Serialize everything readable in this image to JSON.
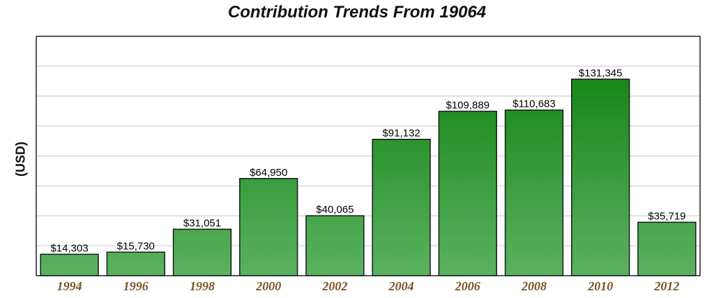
{
  "colors": {
    "bar_top": "#0a7d0a",
    "bar_bottom": "#5ab260",
    "grid": "#c8c8c8",
    "tick_label": "#7a5424",
    "plot_border": "#222222"
  },
  "chart_data": {
    "type": "bar",
    "title": "Contribution Trends From 19064",
    "xlabel": "",
    "ylabel": "(USD)",
    "categories": [
      "1994",
      "1996",
      "1998",
      "2000",
      "2002",
      "2004",
      "2006",
      "2008",
      "2010",
      "2012"
    ],
    "values": [
      14303,
      15730,
      31051,
      64950,
      40065,
      91132,
      109889,
      110683,
      131345,
      35719
    ],
    "data_labels": [
      "$14,303",
      "$15,730",
      "$31,051",
      "$64,950",
      "$40,065",
      "$91,132",
      "$109,889",
      "$110,683",
      "$131,345",
      "$35,719"
    ],
    "ylim": [
      0,
      160000
    ],
    "grid": true,
    "y_tick_labels_shown": false,
    "legend": "none"
  }
}
